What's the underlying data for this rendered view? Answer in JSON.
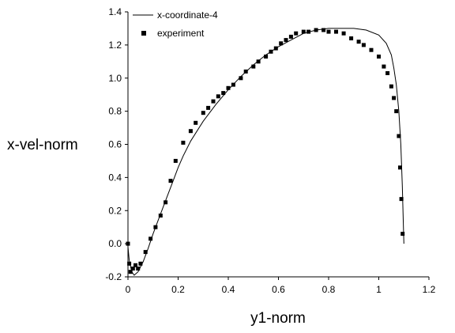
{
  "chart_data": {
    "type": "line",
    "xlabel": "y1-norm",
    "ylabel": "x-vel-norm",
    "xlim": [
      0,
      1.2
    ],
    "ylim": [
      -0.2,
      1.4
    ],
    "x_ticks": [
      "0",
      "0.2",
      "0.4",
      "0.6",
      "0.8",
      "1",
      "1.2"
    ],
    "y_ticks": [
      "-0.2",
      "0.0",
      "0.2",
      "0.4",
      "0.6",
      "0.8",
      "1.0",
      "1.2",
      "1.4"
    ],
    "legend_position": "top-right",
    "series": [
      {
        "name": "x-coordinate-4",
        "style": "line",
        "color": "#000000",
        "points": [
          [
            0.0,
            -0.02
          ],
          [
            0.005,
            -0.1
          ],
          [
            0.015,
            -0.17
          ],
          [
            0.025,
            -0.19
          ],
          [
            0.04,
            -0.17
          ],
          [
            0.06,
            -0.11
          ],
          [
            0.08,
            -0.03
          ],
          [
            0.1,
            0.06
          ],
          [
            0.12,
            0.14
          ],
          [
            0.15,
            0.26
          ],
          [
            0.18,
            0.38
          ],
          [
            0.2,
            0.46
          ],
          [
            0.22,
            0.53
          ],
          [
            0.25,
            0.62
          ],
          [
            0.3,
            0.74
          ],
          [
            0.35,
            0.84
          ],
          [
            0.4,
            0.93
          ],
          [
            0.45,
            1.01
          ],
          [
            0.5,
            1.08
          ],
          [
            0.55,
            1.14
          ],
          [
            0.6,
            1.19
          ],
          [
            0.65,
            1.23
          ],
          [
            0.7,
            1.27
          ],
          [
            0.75,
            1.29
          ],
          [
            0.8,
            1.3
          ],
          [
            0.85,
            1.3
          ],
          [
            0.9,
            1.3
          ],
          [
            0.95,
            1.29
          ],
          [
            1.0,
            1.26
          ],
          [
            1.03,
            1.21
          ],
          [
            1.05,
            1.14
          ],
          [
            1.06,
            1.06
          ],
          [
            1.07,
            0.96
          ],
          [
            1.08,
            0.8
          ],
          [
            1.088,
            0.6
          ],
          [
            1.094,
            0.35
          ],
          [
            1.098,
            0.12
          ],
          [
            1.1,
            0.0
          ]
        ]
      },
      {
        "name": "experiment",
        "style": "marker",
        "color": "#000000",
        "points": [
          [
            0.0,
            0.0
          ],
          [
            0.005,
            -0.12
          ],
          [
            0.01,
            -0.17
          ],
          [
            0.02,
            -0.15
          ],
          [
            0.03,
            -0.13
          ],
          [
            0.04,
            -0.15
          ],
          [
            0.05,
            -0.12
          ],
          [
            0.07,
            -0.05
          ],
          [
            0.09,
            0.03
          ],
          [
            0.11,
            0.1
          ],
          [
            0.13,
            0.17
          ],
          [
            0.15,
            0.25
          ],
          [
            0.17,
            0.38
          ],
          [
            0.19,
            0.5
          ],
          [
            0.22,
            0.61
          ],
          [
            0.25,
            0.68
          ],
          [
            0.27,
            0.73
          ],
          [
            0.3,
            0.79
          ],
          [
            0.32,
            0.82
          ],
          [
            0.34,
            0.86
          ],
          [
            0.36,
            0.89
          ],
          [
            0.38,
            0.91
          ],
          [
            0.4,
            0.94
          ],
          [
            0.42,
            0.96
          ],
          [
            0.45,
            1.0
          ],
          [
            0.47,
            1.04
          ],
          [
            0.5,
            1.07
          ],
          [
            0.52,
            1.1
          ],
          [
            0.55,
            1.13
          ],
          [
            0.57,
            1.16
          ],
          [
            0.59,
            1.18
          ],
          [
            0.61,
            1.21
          ],
          [
            0.63,
            1.23
          ],
          [
            0.65,
            1.25
          ],
          [
            0.67,
            1.27
          ],
          [
            0.7,
            1.28
          ],
          [
            0.72,
            1.28
          ],
          [
            0.75,
            1.29
          ],
          [
            0.78,
            1.29
          ],
          [
            0.8,
            1.28
          ],
          [
            0.83,
            1.28
          ],
          [
            0.86,
            1.27
          ],
          [
            0.89,
            1.24
          ],
          [
            0.92,
            1.22
          ],
          [
            0.94,
            1.2
          ],
          [
            0.97,
            1.17
          ],
          [
            1.0,
            1.13
          ],
          [
            1.02,
            1.07
          ],
          [
            1.035,
            1.03
          ],
          [
            1.05,
            0.95
          ],
          [
            1.06,
            0.88
          ],
          [
            1.07,
            0.8
          ],
          [
            1.08,
            0.65
          ],
          [
            1.085,
            0.46
          ],
          [
            1.09,
            0.27
          ],
          [
            1.095,
            0.06
          ]
        ]
      }
    ]
  }
}
